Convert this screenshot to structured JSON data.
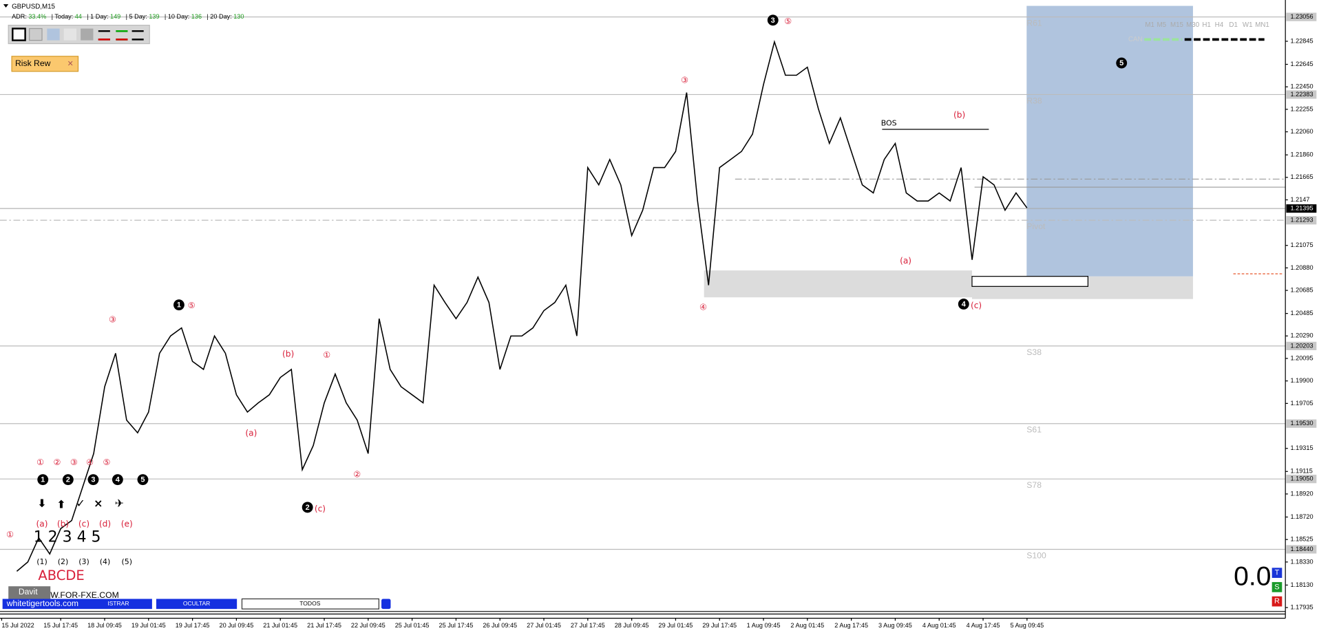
{
  "chart_data": {
    "type": "line",
    "title": "GBPUSD,M15",
    "categories": [
      "15 Jul 2022",
      null,
      null,
      null,
      "15 Jul 17:45",
      null,
      null,
      null,
      "18 Jul 09:45",
      null,
      null,
      null,
      "19 Jul 01:45",
      null,
      null,
      null,
      "19 Jul 17:45",
      null,
      null,
      null,
      "20 Jul 09:45",
      null,
      null,
      null,
      "21 Jul 01:45",
      null,
      null,
      null,
      "21 Jul 17:45",
      null,
      null,
      null,
      "22 Jul 09:45",
      null,
      null,
      null,
      "25 Jul 01:45",
      null,
      null,
      null,
      "25 Jul 17:45",
      null,
      null,
      null,
      "26 Jul 09:45",
      null,
      null,
      null,
      "27 Jul 01:45",
      null,
      null,
      null,
      "27 Jul 17:45",
      null,
      null,
      null,
      "28 Jul 09:45",
      null,
      null,
      null,
      "29 Jul 01:45",
      null,
      null,
      null,
      "29 Jul 17:45",
      null,
      null,
      null,
      "1 Aug 09:45",
      null,
      null,
      null,
      "2 Aug 01:45",
      null,
      null,
      null,
      "2 Aug 17:45",
      null,
      null,
      null,
      "3 Aug 09:45",
      null,
      null,
      null,
      "4 Aug 01:45",
      null,
      null,
      null,
      "4 Aug 17:45",
      null,
      null,
      null,
      "5 Aug 09:45"
    ],
    "values": [
      1.1825,
      1.1833,
      1.1854,
      1.184,
      1.1862,
      1.1869,
      1.1898,
      1.1927,
      1.1985,
      1.2014,
      1.1956,
      1.1945,
      1.1963,
      1.2014,
      1.2029,
      1.2036,
      1.2007,
      1.2,
      1.2029,
      1.2014,
      1.1978,
      1.1963,
      1.1971,
      1.1978,
      1.1993,
      1.2,
      1.1913,
      1.1934,
      1.1971,
      1.1996,
      1.1971,
      1.1956,
      1.1927,
      1.2044,
      1.2,
      1.1985,
      1.1978,
      1.1971,
      1.2073,
      1.2058,
      1.2044,
      1.2058,
      1.208,
      1.2058,
      1.2,
      1.2029,
      1.2029,
      1.2036,
      1.2051,
      1.2058,
      1.2073,
      1.2029,
      1.2175,
      1.216,
      1.2182,
      1.216,
      1.2116,
      1.2138,
      1.2175,
      1.2175,
      1.2189,
      1.224,
      1.2146,
      1.2073,
      1.2175,
      1.2182,
      1.2189,
      1.2204,
      1.2247,
      1.2284,
      1.2255,
      1.2255,
      1.2262,
      1.2226,
      1.2196,
      1.2218,
      1.2189,
      1.216,
      1.2153,
      1.2182,
      1.2196,
      1.2153,
      1.2146,
      1.2146,
      1.2153,
      1.2146,
      1.2175,
      1.2095,
      1.2167,
      1.216,
      1.2138,
      1.2153,
      1.214
    ],
    "color": "#000000",
    "ylim": [
      1.1785,
      1.2313
    ],
    "yticks": [
      1.22845,
      1.22645,
      {
        "value": 1.2245,
        "label": "1.22450"
      },
      1.22255,
      {
        "value": 1.2206,
        "label": "1.22060"
      },
      {
        "value": 1.2186,
        "label": "1.21860"
      },
      1.21665,
      1.2147,
      {
        "value": 1.21075,
        "label": "1.21075"
      },
      {
        "value": 1.2088,
        "label": "1.20880"
      },
      1.20685,
      1.20485,
      {
        "value": 1.2029,
        "label": "1.20290"
      },
      1.20095,
      {
        "value": 1.199,
        "label": "1.19900"
      },
      1.19705,
      1.19315,
      1.19115,
      {
        "value": 1.1892,
        "label": "1.18920"
      },
      {
        "value": 1.1872,
        "label": "1.18720"
      },
      1.18525,
      {
        "value": 1.1833,
        "label": "1.18330"
      },
      {
        "value": 1.1813,
        "label": "1.18130"
      },
      1.17935
    ],
    "current_price": 1.21395,
    "levels": [
      {
        "name": "R61",
        "value": 1.23056
      },
      {
        "name": "R38",
        "value": 1.22383
      },
      {
        "name": "Pivot",
        "value": 1.21293
      },
      {
        "name": "S38",
        "value": 1.20203
      },
      {
        "name": "S61",
        "value": 1.1953,
        "tag": "1.19530"
      },
      {
        "name": "S78",
        "value": 1.1905,
        "tag": "1.19050"
      },
      {
        "name": "S100",
        "value": 1.1844,
        "tag": "1.18440"
      }
    ],
    "other_levels": [
      1.2165,
      1.2158
    ],
    "annotations": [
      "1",
      "⑤",
      "2",
      "(c)",
      "3",
      "⑤",
      "4",
      "(c)",
      "5",
      "③",
      "(b)",
      "①",
      "(a)",
      "②",
      "③",
      "④",
      "(a)",
      "(b)",
      "BOS",
      "①",
      "②",
      "③",
      "④",
      "⑤",
      "1",
      "2",
      "3",
      "4",
      "5",
      "⬇",
      "⬆",
      "✓",
      "×",
      "✈",
      "(a)",
      "(b)",
      "(c)",
      "(d)",
      "(e)",
      "1 2 3 4 5",
      "(1)",
      "(2)",
      "(3)",
      "(4)",
      "(5)",
      "ABCDE",
      "①"
    ]
  },
  "toolbar": {
    "adr": [
      {
        "label": "ADR:",
        "value": "33.4%"
      },
      {
        "label": "| Today:",
        "value": "44"
      },
      {
        "label": "| 1 Day:",
        "value": "149"
      },
      {
        "label": "| 5 Day:",
        "value": "139"
      },
      {
        "label": "| 10 Day:",
        "value": "136"
      },
      {
        "label": "| 20 Day:",
        "value": "130"
      }
    ],
    "timeframes": [
      "M1",
      "M5",
      "M15",
      "M30",
      "H1",
      "H4",
      "D1",
      "W1",
      "MN1"
    ],
    "can": "CAN",
    "risk_button": "Risk Rew"
  },
  "footer": {
    "user": "Davit",
    "site": "whitetigertools.com",
    "site2": "W.FOR-FXE.COM",
    "buttons": [
      "ISTRAR",
      "OCULTAR",
      "TODOS"
    ],
    "counter": "0.0",
    "badges": [
      "T",
      "S",
      "R"
    ]
  }
}
